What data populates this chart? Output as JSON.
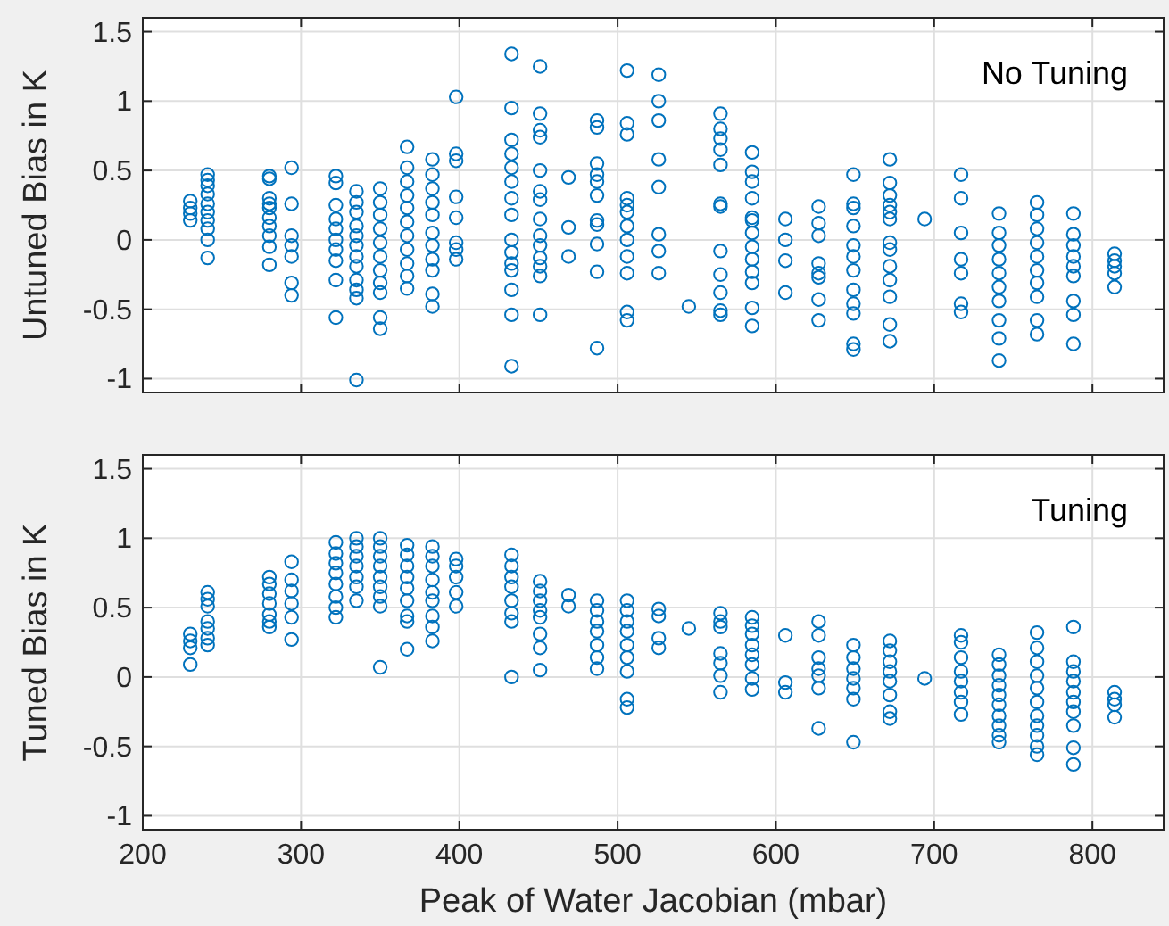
{
  "chart_data": [
    {
      "type": "scatter",
      "ylabel": "Untuned Bias in K",
      "annotations": [
        "No Tuning"
      ],
      "xlim": [
        200,
        845
      ],
      "ylim": [
        -1.1,
        1.6
      ],
      "xticks": [
        200,
        300,
        400,
        500,
        600,
        700,
        800
      ],
      "yticks": [
        -1,
        -0.5,
        0,
        0.5,
        1,
        1.5
      ],
      "tick_labels": "y",
      "grid": true,
      "marker": "circle",
      "series": [
        {
          "color": "#0072bd",
          "x": [
            230,
            230,
            230,
            230,
            241,
            241,
            241,
            241,
            241,
            241,
            241,
            241,
            241,
            241,
            280,
            280,
            280,
            280,
            280,
            280,
            280,
            280,
            280,
            280,
            294,
            294,
            294,
            294,
            294,
            294,
            294,
            322,
            322,
            322,
            322,
            322,
            322,
            322,
            322,
            322,
            322,
            335,
            335,
            335,
            335,
            335,
            335,
            335,
            335,
            335,
            335,
            335,
            335,
            350,
            350,
            350,
            350,
            350,
            350,
            350,
            350,
            350,
            350,
            350,
            367,
            367,
            367,
            367,
            367,
            367,
            367,
            367,
            367,
            367,
            367,
            383,
            383,
            383,
            383,
            383,
            383,
            383,
            383,
            383,
            383,
            383,
            398,
            398,
            398,
            398,
            398,
            398,
            398,
            398,
            433,
            433,
            433,
            433,
            433,
            433,
            433,
            433,
            433,
            433,
            433,
            433,
            433,
            433,
            433,
            451,
            451,
            451,
            451,
            451,
            451,
            451,
            451,
            451,
            451,
            451,
            451,
            451,
            451,
            469,
            469,
            469,
            487,
            487,
            487,
            487,
            487,
            487,
            487,
            487,
            487,
            487,
            487,
            506,
            506,
            506,
            506,
            506,
            506,
            506,
            506,
            506,
            506,
            506,
            506,
            526,
            526,
            526,
            526,
            526,
            526,
            526,
            526,
            545,
            565,
            565,
            565,
            565,
            565,
            565,
            565,
            565,
            565,
            565,
            565,
            565,
            585,
            585,
            585,
            585,
            585,
            585,
            585,
            585,
            585,
            585,
            585,
            585,
            585,
            606,
            606,
            606,
            606,
            627,
            627,
            627,
            627,
            627,
            627,
            627,
            627,
            649,
            649,
            649,
            649,
            649,
            649,
            649,
            649,
            649,
            649,
            649,
            649,
            672,
            672,
            672,
            672,
            672,
            672,
            672,
            672,
            672,
            672,
            672,
            672,
            672,
            694,
            717,
            717,
            717,
            717,
            717,
            717,
            717,
            741,
            741,
            741,
            741,
            741,
            741,
            741,
            741,
            741,
            741,
            765,
            765,
            765,
            765,
            765,
            765,
            765,
            765,
            765,
            765,
            788,
            788,
            788,
            788,
            788,
            788,
            788,
            788,
            788,
            814,
            814,
            814,
            814,
            814
          ],
          "values": [
            0.28,
            0.23,
            0.19,
            0.14,
            0.47,
            0.43,
            0.39,
            0.33,
            0.26,
            0.2,
            0.14,
            0.08,
            0.0,
            -0.13,
            0.46,
            0.44,
            0.3,
            0.26,
            0.23,
            0.16,
            0.1,
            0.03,
            -0.05,
            -0.18,
            0.52,
            0.26,
            0.03,
            -0.04,
            -0.12,
            -0.31,
            -0.4,
            0.46,
            0.41,
            0.25,
            0.15,
            0.08,
            0,
            -0.07,
            -0.15,
            -0.29,
            -0.56,
            0.35,
            0.27,
            0.2,
            0.1,
            0.03,
            -0.04,
            -0.12,
            -0.19,
            -0.29,
            -0.36,
            -0.42,
            -1.01,
            0.37,
            0.27,
            0.18,
            0.08,
            -0.02,
            -0.12,
            -0.22,
            -0.31,
            -0.38,
            -0.56,
            -0.64,
            0.67,
            0.52,
            0.42,
            0.32,
            0.23,
            0.13,
            0.03,
            -0.07,
            -0.17,
            -0.26,
            -0.35,
            0.58,
            0.47,
            0.37,
            0.27,
            0.18,
            0.05,
            -0.04,
            -0.14,
            -0.22,
            -0.39,
            -0.48,
            1.03,
            0.62,
            0.57,
            0.31,
            0.16,
            -0.02,
            -0.07,
            -0.14,
            1.34,
            0.95,
            0.72,
            0.62,
            0.52,
            0.42,
            0.3,
            0.18,
            0.0,
            -0.09,
            -0.17,
            -0.22,
            -0.36,
            -0.54,
            -0.91,
            1.25,
            0.91,
            0.79,
            0.74,
            0.5,
            0.35,
            0.29,
            0.15,
            0.03,
            -0.04,
            -0.13,
            -0.19,
            -0.26,
            -0.54,
            0.45,
            0.09,
            -0.12,
            0.86,
            0.81,
            0.55,
            0.47,
            0.42,
            0.32,
            0.14,
            0.11,
            -0.03,
            -0.23,
            -0.78,
            1.22,
            0.84,
            0.76,
            0.3,
            0.25,
            0.2,
            0.1,
            0.0,
            -0.12,
            -0.24,
            -0.52,
            -0.58,
            1.19,
            1.0,
            0.86,
            0.58,
            0.38,
            0.04,
            -0.08,
            -0.24,
            -0.48,
            0.91,
            0.8,
            0.73,
            0.65,
            0.54,
            0.26,
            0.24,
            -0.08,
            -0.25,
            -0.38,
            -0.51,
            -0.54,
            0.63,
            0.49,
            0.42,
            0.3,
            0.16,
            0.14,
            0.05,
            -0.05,
            -0.14,
            -0.23,
            -0.31,
            -0.49,
            -0.62,
            0.15,
            0.0,
            -0.15,
            -0.38,
            0.24,
            0.12,
            0.03,
            -0.17,
            -0.24,
            -0.27,
            -0.43,
            -0.58,
            0.47,
            0.26,
            0.23,
            0.1,
            -0.04,
            -0.12,
            -0.22,
            -0.36,
            -0.46,
            -0.53,
            -0.75,
            -0.79,
            0.58,
            0.41,
            0.32,
            0.25,
            0.2,
            0.15,
            -0.02,
            -0.07,
            -0.19,
            -0.29,
            -0.41,
            -0.61,
            -0.73,
            0.15,
            0.47,
            0.3,
            0.05,
            -0.14,
            -0.24,
            -0.46,
            -0.52,
            0.19,
            0.05,
            -0.04,
            -0.14,
            -0.24,
            -0.34,
            -0.44,
            -0.58,
            -0.71,
            -0.87,
            0.27,
            0.18,
            0.08,
            -0.02,
            -0.12,
            -0.22,
            -0.31,
            -0.41,
            -0.58,
            -0.68,
            0.19,
            0.04,
            -0.04,
            -0.12,
            -0.19,
            -0.26,
            -0.44,
            -0.54,
            -0.75,
            -0.1,
            -0.15,
            -0.19,
            -0.24,
            -0.34
          ]
        }
      ]
    },
    {
      "type": "scatter",
      "ylabel": "Tuned Bias in K",
      "xlabel": "Peak of Water Jacobian (mbar)",
      "annotations": [
        "Tuning"
      ],
      "xlim": [
        200,
        845
      ],
      "ylim": [
        -1.1,
        1.6
      ],
      "xticks": [
        200,
        300,
        400,
        500,
        600,
        700,
        800
      ],
      "yticks": [
        -1,
        -0.5,
        0,
        0.5,
        1,
        1.5
      ],
      "grid": true,
      "marker": "circle",
      "series": [
        {
          "color": "#0072bd",
          "x": [
            230,
            230,
            230,
            230,
            241,
            241,
            241,
            241,
            241,
            241,
            241,
            280,
            280,
            280,
            280,
            280,
            280,
            280,
            294,
            294,
            294,
            294,
            294,
            294,
            322,
            322,
            322,
            322,
            322,
            322,
            322,
            322,
            335,
            335,
            335,
            335,
            335,
            335,
            335,
            350,
            350,
            350,
            350,
            350,
            350,
            350,
            350,
            350,
            367,
            367,
            367,
            367,
            367,
            367,
            367,
            367,
            367,
            383,
            383,
            383,
            383,
            383,
            383,
            383,
            383,
            383,
            398,
            398,
            398,
            398,
            398,
            433,
            433,
            433,
            433,
            433,
            433,
            433,
            433,
            451,
            451,
            451,
            451,
            451,
            451,
            451,
            451,
            469,
            469,
            487,
            487,
            487,
            487,
            487,
            487,
            487,
            506,
            506,
            506,
            506,
            506,
            506,
            506,
            506,
            506,
            526,
            526,
            526,
            526,
            545,
            565,
            565,
            565,
            565,
            565,
            565,
            565,
            585,
            585,
            585,
            585,
            585,
            585,
            585,
            585,
            606,
            606,
            606,
            627,
            627,
            627,
            627,
            627,
            627,
            627,
            649,
            649,
            649,
            649,
            649,
            649,
            649,
            672,
            672,
            672,
            672,
            672,
            672,
            672,
            672,
            694,
            717,
            717,
            717,
            717,
            717,
            717,
            717,
            717,
            741,
            741,
            741,
            741,
            741,
            741,
            741,
            741,
            741,
            741,
            765,
            765,
            765,
            765,
            765,
            765,
            765,
            765,
            765,
            765,
            765,
            788,
            788,
            788,
            788,
            788,
            788,
            788,
            788,
            788,
            788,
            814,
            814,
            814,
            814
          ],
          "values": [
            0.31,
            0.26,
            0.21,
            0.09,
            0.61,
            0.56,
            0.51,
            0.4,
            0.35,
            0.28,
            0.23,
            0.72,
            0.67,
            0.6,
            0.53,
            0.45,
            0.4,
            0.36,
            0.83,
            0.7,
            0.62,
            0.53,
            0.43,
            0.27,
            0.97,
            0.89,
            0.82,
            0.75,
            0.67,
            0.58,
            0.5,
            0.43,
            1.0,
            0.94,
            0.87,
            0.8,
            0.72,
            0.65,
            0.55,
            1.0,
            0.94,
            0.87,
            0.8,
            0.72,
            0.65,
            0.58,
            0.51,
            0.07,
            0.95,
            0.88,
            0.8,
            0.72,
            0.64,
            0.55,
            0.44,
            0.4,
            0.2,
            0.94,
            0.87,
            0.8,
            0.7,
            0.61,
            0.55,
            0.44,
            0.36,
            0.26,
            0.85,
            0.8,
            0.72,
            0.61,
            0.51,
            0.88,
            0.8,
            0.72,
            0.65,
            0.55,
            0.46,
            0.4,
            0.0,
            0.69,
            0.62,
            0.55,
            0.48,
            0.43,
            0.31,
            0.21,
            0.05,
            0.59,
            0.51,
            0.55,
            0.48,
            0.4,
            0.33,
            0.23,
            0.14,
            0.06,
            0.55,
            0.48,
            0.4,
            0.33,
            0.23,
            0.14,
            0.04,
            -0.16,
            -0.22,
            0.49,
            0.44,
            0.28,
            0.21,
            0.35,
            0.46,
            0.4,
            0.36,
            0.17,
            0.1,
            0.01,
            -0.11,
            0.43,
            0.37,
            0.31,
            0.23,
            0.16,
            0.09,
            -0.01,
            -0.09,
            0.3,
            -0.04,
            -0.11,
            0.4,
            0.3,
            0.14,
            0.06,
            0.01,
            -0.08,
            -0.37,
            0.23,
            0.14,
            0.06,
            -0.01,
            -0.08,
            -0.16,
            -0.47,
            0.26,
            0.19,
            0.11,
            0.04,
            -0.03,
            -0.13,
            -0.25,
            -0.3,
            -0.01,
            0.3,
            0.25,
            0.14,
            0.04,
            -0.03,
            -0.11,
            -0.18,
            -0.27,
            0.16,
            0.09,
            0.01,
            -0.06,
            -0.13,
            -0.2,
            -0.28,
            -0.35,
            -0.42,
            -0.47,
            0.32,
            0.21,
            0.11,
            0.01,
            -0.08,
            -0.18,
            -0.28,
            -0.35,
            -0.42,
            -0.5,
            -0.56,
            0.36,
            0.11,
            0.04,
            -0.03,
            -0.11,
            -0.18,
            -0.25,
            -0.35,
            -0.51,
            -0.63,
            -0.11,
            -0.16,
            -0.2,
            -0.29
          ]
        }
      ]
    }
  ]
}
